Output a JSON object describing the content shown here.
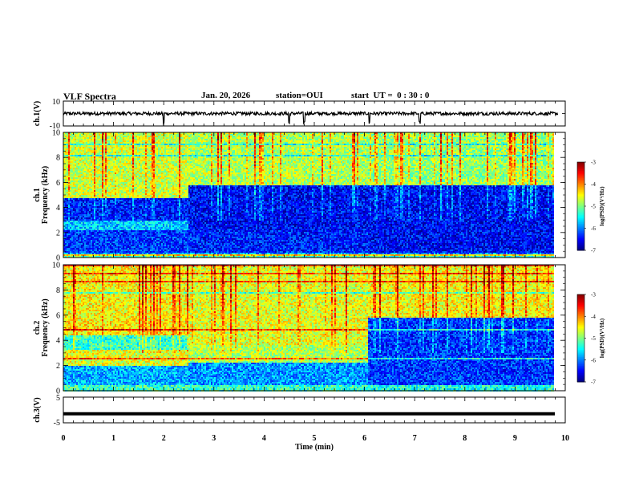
{
  "header": {
    "title": "VLF Spectra",
    "date": "Jan. 20, 2026",
    "station": "station=OUI",
    "start": "start  UT =  0 : 30 : 0"
  },
  "colors": {
    "colormap": [
      "#00007f",
      "#0000ff",
      "#0080ff",
      "#00ffff",
      "#80ff80",
      "#ffff00",
      "#ff8000",
      "#ff0000",
      "#7f0000"
    ],
    "trace": "#000000"
  },
  "chart_data": [
    {
      "type": "line",
      "name": "ch1-waveform",
      "ylabel": "ch.1(V)",
      "ylim": [
        -10,
        10
      ],
      "y_ticklabels": [
        "10",
        "-10"
      ],
      "baseline": 0,
      "spikes_at_min": [
        2.0,
        4.5,
        4.8,
        6.1,
        7.1
      ]
    },
    {
      "type": "heatmap",
      "name": "ch1-spectrogram",
      "ylabel": "ch.1\nFrequency (kHz)",
      "x": {
        "label": "Time (min)",
        "lim": [
          0,
          10
        ]
      },
      "y": {
        "lim": [
          0,
          10
        ],
        "ticks": [
          0,
          2,
          4,
          6,
          8,
          10
        ]
      },
      "zlim": [
        -7,
        -3
      ],
      "data_extent_min": 9.85,
      "bands": [
        {
          "t0": 0,
          "t1": 2.5,
          "f0": 0,
          "f1": 0.4,
          "level": -5.2
        },
        {
          "t0": 0,
          "t1": 2.5,
          "f0": 0.4,
          "f1": 2.2,
          "level": -6.3
        },
        {
          "t0": 0,
          "t1": 2.5,
          "f0": 2.2,
          "f1": 3.0,
          "level": -5.7
        },
        {
          "t0": 0,
          "t1": 2.5,
          "f0": 3.0,
          "f1": 4.8,
          "level": -6.4
        },
        {
          "t0": 0,
          "t1": 2.5,
          "f0": 4.8,
          "f1": 10,
          "level": -4.7
        },
        {
          "t0": 2.5,
          "t1": 6.1,
          "f0": 0,
          "f1": 0.4,
          "level": -5.2
        },
        {
          "t0": 2.5,
          "t1": 6.1,
          "f0": 0.4,
          "f1": 2.2,
          "level": -6.4
        },
        {
          "t0": 2.5,
          "t1": 6.1,
          "f0": 2.2,
          "f1": 5.8,
          "level": -6.5
        },
        {
          "t0": 2.5,
          "t1": 6.1,
          "f0": 5.8,
          "f1": 10,
          "level": -4.8
        },
        {
          "t0": 6.1,
          "t1": 9.85,
          "f0": 0,
          "f1": 0.4,
          "level": -5.3
        },
        {
          "t0": 6.1,
          "t1": 9.85,
          "f0": 0.4,
          "f1": 5.8,
          "level": -6.5
        },
        {
          "t0": 6.1,
          "t1": 9.85,
          "f0": 5.8,
          "f1": 10,
          "level": -4.9
        }
      ],
      "colorbar": {
        "label": "log(PSD)(V²/Hz)",
        "ticks": [
          -3,
          -4,
          -5,
          -6,
          -7
        ]
      }
    },
    {
      "type": "heatmap",
      "name": "ch2-spectrogram",
      "ylabel": "ch.2\nFrequency (kHz)",
      "x": {
        "label": "Time (min)",
        "lim": [
          0,
          10
        ]
      },
      "y": {
        "lim": [
          0,
          10
        ],
        "ticks": [
          0,
          2,
          4,
          6,
          8,
          10
        ]
      },
      "zlim": [
        -7,
        -3
      ],
      "data_extent_min": 9.85,
      "bands": [
        {
          "t0": 0,
          "t1": 2.5,
          "f0": 0,
          "f1": 0.5,
          "level": -5.3
        },
        {
          "t0": 0,
          "t1": 2.5,
          "f0": 0.5,
          "f1": 2.0,
          "level": -5.8
        },
        {
          "t0": 0,
          "t1": 2.5,
          "f0": 2.0,
          "f1": 3.3,
          "level": -4.6
        },
        {
          "t0": 0,
          "t1": 2.5,
          "f0": 3.3,
          "f1": 4.4,
          "level": -5.3
        },
        {
          "t0": 0,
          "t1": 2.5,
          "f0": 4.4,
          "f1": 5.5,
          "level": -4.4
        },
        {
          "t0": 0,
          "t1": 2.5,
          "f0": 5.5,
          "f1": 10,
          "level": -4.5
        },
        {
          "t0": 2.5,
          "t1": 6.1,
          "f0": 0,
          "f1": 0.5,
          "level": -5.3
        },
        {
          "t0": 2.5,
          "t1": 6.1,
          "f0": 0.5,
          "f1": 2.2,
          "level": -5.9
        },
        {
          "t0": 2.5,
          "t1": 6.1,
          "f0": 2.2,
          "f1": 3.6,
          "level": -4.8
        },
        {
          "t0": 2.5,
          "t1": 6.1,
          "f0": 3.6,
          "f1": 10,
          "level": -4.6
        },
        {
          "t0": 6.1,
          "t1": 9.85,
          "f0": 0,
          "f1": 0.5,
          "level": -5.4
        },
        {
          "t0": 6.1,
          "t1": 9.85,
          "f0": 0.5,
          "f1": 5.8,
          "level": -6.3
        },
        {
          "t0": 6.1,
          "t1": 9.85,
          "f0": 5.8,
          "f1": 10,
          "level": -4.5
        }
      ],
      "colorbar": {
        "label": "log(PSD)(V²/Hz)",
        "ticks": [
          -3,
          -4,
          -5,
          -6,
          -7
        ]
      }
    },
    {
      "type": "line",
      "name": "ch3-waveform",
      "ylabel": "ch.3(V)",
      "ylim": [
        -5,
        5
      ],
      "y_ticklabels": [
        "5",
        "-5"
      ],
      "baseline": -1.5,
      "x": {
        "label": "Time (min)",
        "lim": [
          0,
          10
        ],
        "ticks": [
          0,
          1,
          2,
          3,
          4,
          5,
          6,
          7,
          8,
          9,
          10
        ]
      }
    }
  ]
}
